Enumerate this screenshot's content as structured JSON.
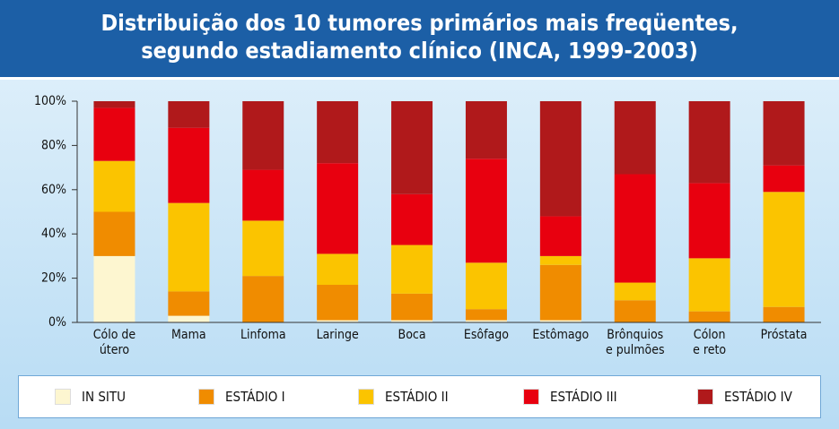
{
  "chart_data": {
    "type": "stacked_bar",
    "title": "Distribuição dos 10 tumores primários mais freqüentes,\nsegundo estadiamento clínico (INCA, 1999-2003)",
    "categories": [
      "Cólo de\nútero",
      "Mama",
      "Linfoma",
      "Laringe",
      "Boca",
      "Esôfago",
      "Estômago",
      "Brônquios\ne pulmões",
      "Cólon\ne reto",
      "Próstata"
    ],
    "series": [
      {
        "name": "IN SITU",
        "color": "#fdf6d0",
        "values": [
          30,
          3,
          0,
          1,
          1,
          1,
          1,
          0,
          0,
          0
        ]
      },
      {
        "name": "ESTÁDIO I",
        "color": "#f08c00",
        "values": [
          20,
          11,
          21,
          16,
          12,
          5,
          25,
          10,
          5,
          7
        ]
      },
      {
        "name": "ESTÁDIO II",
        "color": "#fbc400",
        "values": [
          23,
          40,
          25,
          14,
          22,
          21,
          4,
          8,
          24,
          52
        ]
      },
      {
        "name": "ESTÁDIO III",
        "color": "#e8000f",
        "values": [
          24,
          34,
          23,
          41,
          23,
          47,
          18,
          49,
          34,
          12
        ]
      },
      {
        "name": "ESTÁDIO IV",
        "color": "#b0191b",
        "values": [
          3,
          12,
          31,
          28,
          42,
          26,
          52,
          33,
          37,
          29
        ]
      }
    ],
    "ylim": [
      0,
      100
    ],
    "yticks": [
      {
        "value": 0,
        "label": "0%"
      },
      {
        "value": 20,
        "label": "20%"
      },
      {
        "value": 40,
        "label": "40%"
      },
      {
        "value": 60,
        "label": "60%"
      },
      {
        "value": 80,
        "label": "80%"
      },
      {
        "value": 100,
        "label": "100%"
      }
    ],
    "legend": "bottom"
  }
}
